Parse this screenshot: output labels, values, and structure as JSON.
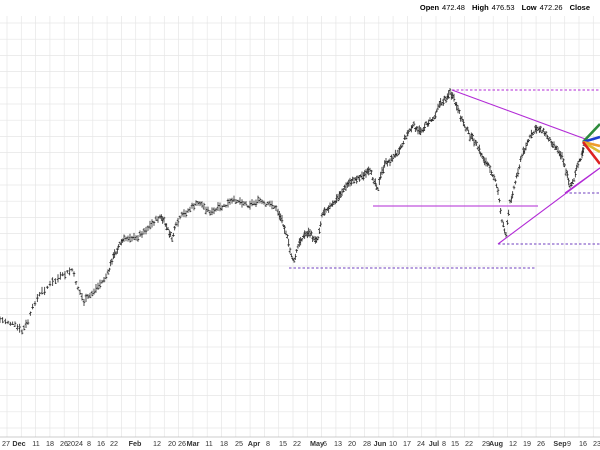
{
  "header": {
    "open_label": "Open",
    "open_value": "472.48",
    "high_label": "High",
    "high_value": "476.53",
    "low_label": "Low",
    "low_value": "472.26",
    "close_label": "Close",
    "close_value": ""
  },
  "chart_data": {
    "type": "ohlc",
    "title": "",
    "x_tick_labels": [
      "27",
      "Dec",
      "11",
      "18",
      "26",
      "2024",
      "8",
      "16",
      "22",
      "Feb",
      "12",
      "20",
      "26",
      "Mar",
      "11",
      "18",
      "25",
      "Apr",
      "8",
      "15",
      "22",
      "May",
      "6",
      "13",
      "20",
      "28",
      "Jun",
      "10",
      "17",
      "24",
      "Jul",
      "8",
      "15",
      "22",
      "29",
      "Aug",
      "12",
      "19",
      "26",
      "Sep",
      "9",
      "16",
      "23"
    ],
    "price_path": [
      [
        0,
        320
      ],
      [
        8,
        322
      ],
      [
        15,
        326
      ],
      [
        22,
        332
      ],
      [
        28,
        322
      ],
      [
        35,
        302
      ],
      [
        42,
        292
      ],
      [
        50,
        285
      ],
      [
        58,
        279
      ],
      [
        65,
        275
      ],
      [
        72,
        270
      ],
      [
        78,
        288
      ],
      [
        84,
        302
      ],
      [
        90,
        296
      ],
      [
        96,
        289
      ],
      [
        102,
        282
      ],
      [
        108,
        274
      ],
      [
        112,
        260
      ],
      [
        116,
        252
      ],
      [
        120,
        244
      ],
      [
        124,
        240
      ],
      [
        130,
        237
      ],
      [
        136,
        239
      ],
      [
        142,
        233
      ],
      [
        148,
        228
      ],
      [
        154,
        222
      ],
      [
        160,
        217
      ],
      [
        164,
        222
      ],
      [
        168,
        230
      ],
      [
        172,
        239
      ],
      [
        176,
        226
      ],
      [
        182,
        216
      ],
      [
        188,
        211
      ],
      [
        194,
        206
      ],
      [
        200,
        203
      ],
      [
        206,
        209
      ],
      [
        212,
        213
      ],
      [
        218,
        209
      ],
      [
        224,
        207
      ],
      [
        230,
        203
      ],
      [
        236,
        200
      ],
      [
        242,
        202
      ],
      [
        248,
        205
      ],
      [
        254,
        203
      ],
      [
        260,
        201
      ],
      [
        266,
        206
      ],
      [
        272,
        204
      ],
      [
        278,
        212
      ],
      [
        282,
        220
      ],
      [
        286,
        232
      ],
      [
        290,
        251
      ],
      [
        294,
        262
      ],
      [
        298,
        247
      ],
      [
        302,
        238
      ],
      [
        306,
        234
      ],
      [
        310,
        233
      ],
      [
        314,
        240
      ],
      [
        318,
        238
      ],
      [
        322,
        215
      ],
      [
        326,
        209
      ],
      [
        330,
        207
      ],
      [
        334,
        204
      ],
      [
        338,
        198
      ],
      [
        342,
        192
      ],
      [
        346,
        187
      ],
      [
        350,
        182
      ],
      [
        354,
        180
      ],
      [
        358,
        178
      ],
      [
        362,
        176
      ],
      [
        366,
        174
      ],
      [
        370,
        172
      ],
      [
        374,
        180
      ],
      [
        378,
        188
      ],
      [
        382,
        172
      ],
      [
        386,
        163
      ],
      [
        390,
        161
      ],
      [
        394,
        157
      ],
      [
        398,
        151
      ],
      [
        402,
        145
      ],
      [
        406,
        136
      ],
      [
        410,
        130
      ],
      [
        414,
        126
      ],
      [
        418,
        132
      ],
      [
        422,
        130
      ],
      [
        426,
        125
      ],
      [
        430,
        121
      ],
      [
        434,
        118
      ],
      [
        438,
        106
      ],
      [
        442,
        103
      ],
      [
        446,
        98
      ],
      [
        450,
        93
      ],
      [
        454,
        100
      ],
      [
        458,
        111
      ],
      [
        462,
        120
      ],
      [
        466,
        128
      ],
      [
        470,
        136
      ],
      [
        474,
        141
      ],
      [
        478,
        148
      ],
      [
        482,
        156
      ],
      [
        486,
        163
      ],
      [
        490,
        168
      ],
      [
        494,
        177
      ],
      [
        498,
        192
      ],
      [
        502,
        220
      ],
      [
        506,
        235
      ],
      [
        510,
        203
      ],
      [
        514,
        188
      ],
      [
        518,
        171
      ],
      [
        522,
        156
      ],
      [
        526,
        146
      ],
      [
        530,
        138
      ],
      [
        534,
        132
      ],
      [
        538,
        128
      ],
      [
        542,
        130
      ],
      [
        546,
        135
      ],
      [
        550,
        140
      ],
      [
        554,
        145
      ],
      [
        558,
        150
      ],
      [
        562,
        156
      ],
      [
        566,
        172
      ],
      [
        570,
        185
      ],
      [
        574,
        180
      ],
      [
        578,
        165
      ],
      [
        582,
        155
      ],
      [
        584,
        146
      ],
      [
        587,
        142
      ]
    ],
    "bars_per_segment": 3,
    "x_range": [
      0,
      600
    ],
    "y_range": [
      0,
      450
    ]
  },
  "annotations": {
    "fan_colors": [
      "#2e8b3c",
      "#1f3fd0",
      "#ee9b2d",
      "#ddbb30",
      "#dd2222"
    ],
    "trendline_color": "#b22ad6",
    "horizontal_line_color": "#6f3fbf"
  },
  "x_axis": {
    "labels": [
      {
        "t": "27",
        "x": 6
      },
      {
        "t": "Dec",
        "x": 19
      },
      {
        "t": "11",
        "x": 36
      },
      {
        "t": "18",
        "x": 50
      },
      {
        "t": "26",
        "x": 64
      },
      {
        "t": "2024",
        "x": 75
      },
      {
        "t": "8",
        "x": 89
      },
      {
        "t": "16",
        "x": 101
      },
      {
        "t": "22",
        "x": 114
      },
      {
        "t": "Feb",
        "x": 135
      },
      {
        "t": "12",
        "x": 157
      },
      {
        "t": "20",
        "x": 172
      },
      {
        "t": "26",
        "x": 182
      },
      {
        "t": "Mar",
        "x": 193
      },
      {
        "t": "11",
        "x": 209
      },
      {
        "t": "18",
        "x": 224
      },
      {
        "t": "25",
        "x": 239
      },
      {
        "t": "Apr",
        "x": 254
      },
      {
        "t": "8",
        "x": 268
      },
      {
        "t": "15",
        "x": 283
      },
      {
        "t": "22",
        "x": 297
      },
      {
        "t": "May",
        "x": 317
      },
      {
        "t": "6",
        "x": 325
      },
      {
        "t": "13",
        "x": 338
      },
      {
        "t": "20",
        "x": 352
      },
      {
        "t": "28",
        "x": 367
      },
      {
        "t": "Jun",
        "x": 380
      },
      {
        "t": "10",
        "x": 393
      },
      {
        "t": "17",
        "x": 407
      },
      {
        "t": "24",
        "x": 421
      },
      {
        "t": "Jul",
        "x": 434
      },
      {
        "t": "8",
        "x": 444
      },
      {
        "t": "15",
        "x": 455
      },
      {
        "t": "22",
        "x": 469
      },
      {
        "t": "29",
        "x": 486
      },
      {
        "t": "Aug",
        "x": 496
      },
      {
        "t": "12",
        "x": 513
      },
      {
        "t": "19",
        "x": 527
      },
      {
        "t": "26",
        "x": 541
      },
      {
        "t": "Sep",
        "x": 560
      },
      {
        "t": "9",
        "x": 569
      },
      {
        "t": "16",
        "x": 583
      },
      {
        "t": "23",
        "x": 597
      }
    ]
  }
}
